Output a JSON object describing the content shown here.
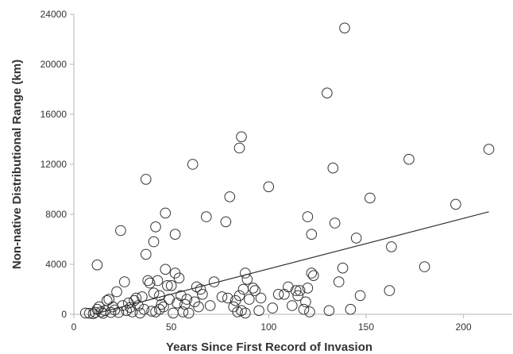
{
  "chart_data": {
    "type": "scatter",
    "title": "",
    "xlabel": "Years Since First Record of Invasion",
    "ylabel": "Non-native Distributional Range (km)",
    "xlim": [
      0,
      225
    ],
    "ylim": [
      0,
      24000
    ],
    "x_ticks": [
      "0",
      "50",
      "100",
      "150",
      "200"
    ],
    "y_ticks": [
      "0",
      "4000",
      "8000",
      "12000",
      "16000",
      "20000",
      "24000"
    ],
    "grid": false,
    "legend": "none",
    "marker_color": "#333333",
    "line_color": "#333333",
    "trendline": {
      "x": [
        10,
        213
      ],
      "y": [
        0,
        8200
      ]
    },
    "points": [
      [
        6,
        100
      ],
      [
        8,
        80
      ],
      [
        10,
        50
      ],
      [
        11,
        150
      ],
      [
        12,
        400
      ],
      [
        12,
        3950
      ],
      [
        13,
        600
      ],
      [
        14,
        200
      ],
      [
        15,
        80
      ],
      [
        16,
        300
      ],
      [
        17,
        1100
      ],
      [
        18,
        1200
      ],
      [
        19,
        150
      ],
      [
        20,
        600
      ],
      [
        21,
        350
      ],
      [
        22,
        1800
      ],
      [
        23,
        150
      ],
      [
        24,
        6700
      ],
      [
        25,
        700
      ],
      [
        26,
        2600
      ],
      [
        27,
        300
      ],
      [
        28,
        900
      ],
      [
        29,
        550
      ],
      [
        30,
        200
      ],
      [
        31,
        1100
      ],
      [
        32,
        1300
      ],
      [
        33,
        700
      ],
      [
        34,
        100
      ],
      [
        35,
        1400
      ],
      [
        36,
        400
      ],
      [
        37,
        4800
      ],
      [
        37,
        10800
      ],
      [
        38,
        2700
      ],
      [
        39,
        2500
      ],
      [
        40,
        250
      ],
      [
        41,
        5800
      ],
      [
        41,
        1700
      ],
      [
        42,
        7000
      ],
      [
        42,
        200
      ],
      [
        43,
        2700
      ],
      [
        44,
        1500
      ],
      [
        44,
        400
      ],
      [
        45,
        800
      ],
      [
        46,
        600
      ],
      [
        47,
        3600
      ],
      [
        47,
        8100
      ],
      [
        48,
        2300
      ],
      [
        49,
        1200
      ],
      [
        50,
        2300
      ],
      [
        51,
        100
      ],
      [
        52,
        6400
      ],
      [
        52,
        3300
      ],
      [
        53,
        900
      ],
      [
        54,
        2900
      ],
      [
        55,
        1500
      ],
      [
        56,
        200
      ],
      [
        57,
        800
      ],
      [
        58,
        1200
      ],
      [
        59,
        100
      ],
      [
        61,
        12000
      ],
      [
        62,
        1000
      ],
      [
        63,
        2200
      ],
      [
        64,
        600
      ],
      [
        65,
        2000
      ],
      [
        66,
        1600
      ],
      [
        68,
        7800
      ],
      [
        70,
        700
      ],
      [
        72,
        2600
      ],
      [
        76,
        1400
      ],
      [
        78,
        7400
      ],
      [
        79,
        1300
      ],
      [
        80,
        9400
      ],
      [
        82,
        600
      ],
      [
        83,
        1100
      ],
      [
        84,
        200
      ],
      [
        85,
        1500
      ],
      [
        85,
        13300
      ],
      [
        86,
        14200
      ],
      [
        86,
        300
      ],
      [
        87,
        2000
      ],
      [
        88,
        3300
      ],
      [
        88,
        100
      ],
      [
        89,
        2800
      ],
      [
        90,
        1200
      ],
      [
        92,
        2100
      ],
      [
        93,
        1900
      ],
      [
        95,
        300
      ],
      [
        96,
        1300
      ],
      [
        100,
        10200
      ],
      [
        102,
        500
      ],
      [
        105,
        1600
      ],
      [
        108,
        1600
      ],
      [
        110,
        2200
      ],
      [
        112,
        700
      ],
      [
        114,
        1900
      ],
      [
        115,
        1500
      ],
      [
        116,
        1900
      ],
      [
        118,
        400
      ],
      [
        119,
        1000
      ],
      [
        120,
        2100
      ],
      [
        120,
        7800
      ],
      [
        121,
        200
      ],
      [
        122,
        3300
      ],
      [
        122,
        6400
      ],
      [
        123,
        3100
      ],
      [
        130,
        17700
      ],
      [
        131,
        300
      ],
      [
        133,
        11700
      ],
      [
        134,
        7300
      ],
      [
        136,
        2600
      ],
      [
        138,
        3700
      ],
      [
        139,
        22900
      ],
      [
        142,
        400
      ],
      [
        145,
        6100
      ],
      [
        147,
        1500
      ],
      [
        152,
        9300
      ],
      [
        162,
        1900
      ],
      [
        163,
        5400
      ],
      [
        172,
        12400
      ],
      [
        180,
        3800
      ],
      [
        196,
        8800
      ],
      [
        213,
        13200
      ]
    ]
  }
}
